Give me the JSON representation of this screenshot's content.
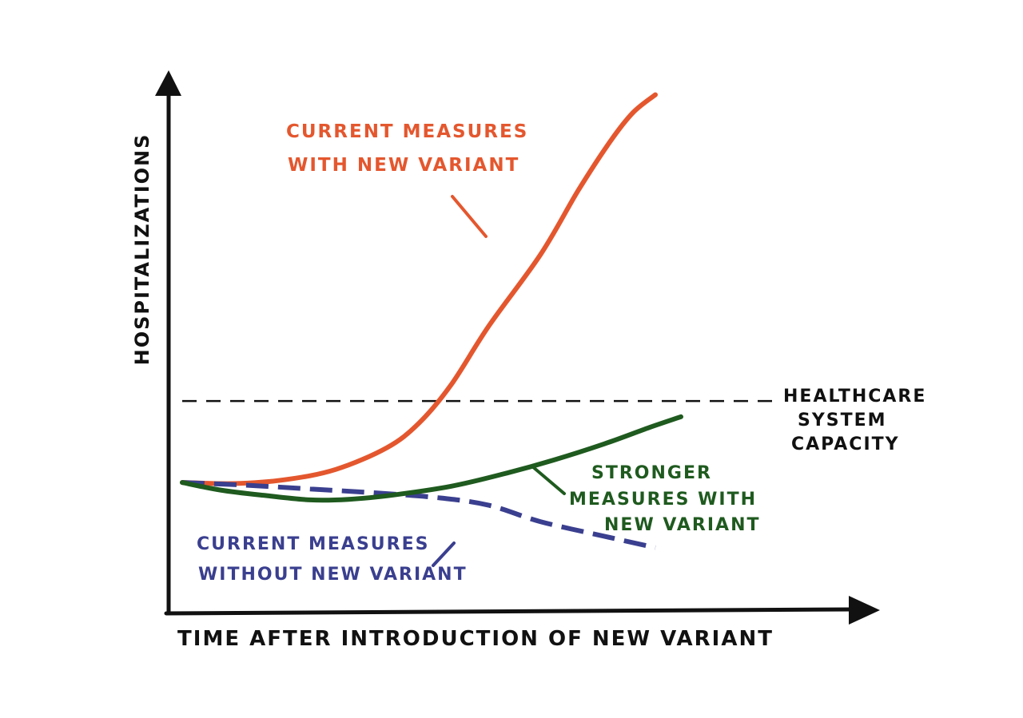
{
  "chart_data": {
    "type": "line",
    "style": "hand-drawn",
    "title": "",
    "xlabel": "TIME AFTER INTRODUCTION OF NEW VARIANT",
    "ylabel": "HOSPITALIZATIONS",
    "x_tick_labels": [],
    "y_tick_labels": [],
    "xlim": [
      0,
      10
    ],
    "ylim": [
      0,
      10
    ],
    "grid": false,
    "legend": "none (series labeled inline)",
    "reference_lines": [
      {
        "name": "capacity",
        "label_lines": [
          "HEALTHCARE",
          "SYSTEM",
          "CAPACITY"
        ],
        "y": 3.91,
        "style": "dashed",
        "color": "#111111"
      }
    ],
    "series": [
      {
        "key": "current_with_variant",
        "label_lines": [
          "CURRENT MEASURES",
          "WITH NEW VARIANT"
        ],
        "color": "#e4572e",
        "style": "solid",
        "points": [
          [
            0,
            2.41
          ],
          [
            0.8,
            2.39
          ],
          [
            1.6,
            2.46
          ],
          [
            2.4,
            2.65
          ],
          [
            3.2,
            3.05
          ],
          [
            3.7,
            3.5
          ],
          [
            4.2,
            4.2
          ],
          [
            4.8,
            5.3
          ],
          [
            5.6,
            6.6
          ],
          [
            6.2,
            7.8
          ],
          [
            6.7,
            8.7
          ],
          [
            7.05,
            9.22
          ],
          [
            7.4,
            9.55
          ]
        ]
      },
      {
        "key": "stronger_with_variant",
        "label_lines": [
          "STRONGER",
          "MEASURES WITH",
          "NEW VARIANT"
        ],
        "color": "#1f5a1f",
        "style": "solid",
        "points": [
          [
            0,
            2.41
          ],
          [
            0.6,
            2.27
          ],
          [
            1.3,
            2.17
          ],
          [
            2.0,
            2.09
          ],
          [
            2.6,
            2.1
          ],
          [
            3.3,
            2.18
          ],
          [
            4.2,
            2.34
          ],
          [
            5.0,
            2.56
          ],
          [
            5.8,
            2.82
          ],
          [
            6.6,
            3.12
          ],
          [
            7.3,
            3.42
          ],
          [
            7.8,
            3.62
          ]
        ]
      },
      {
        "key": "current_without_variant",
        "label_lines": [
          "CURRENT MEASURES",
          "WITHOUT NEW VARIANT"
        ],
        "color": "#3a3f8f",
        "style": "dashed",
        "points": [
          [
            0,
            2.41
          ],
          [
            1.0,
            2.36
          ],
          [
            2.0,
            2.29
          ],
          [
            3.0,
            2.22
          ],
          [
            4.0,
            2.13
          ],
          [
            4.8,
            1.99
          ],
          [
            5.6,
            1.69
          ],
          [
            6.6,
            1.42
          ],
          [
            7.4,
            1.21
          ]
        ]
      }
    ]
  }
}
